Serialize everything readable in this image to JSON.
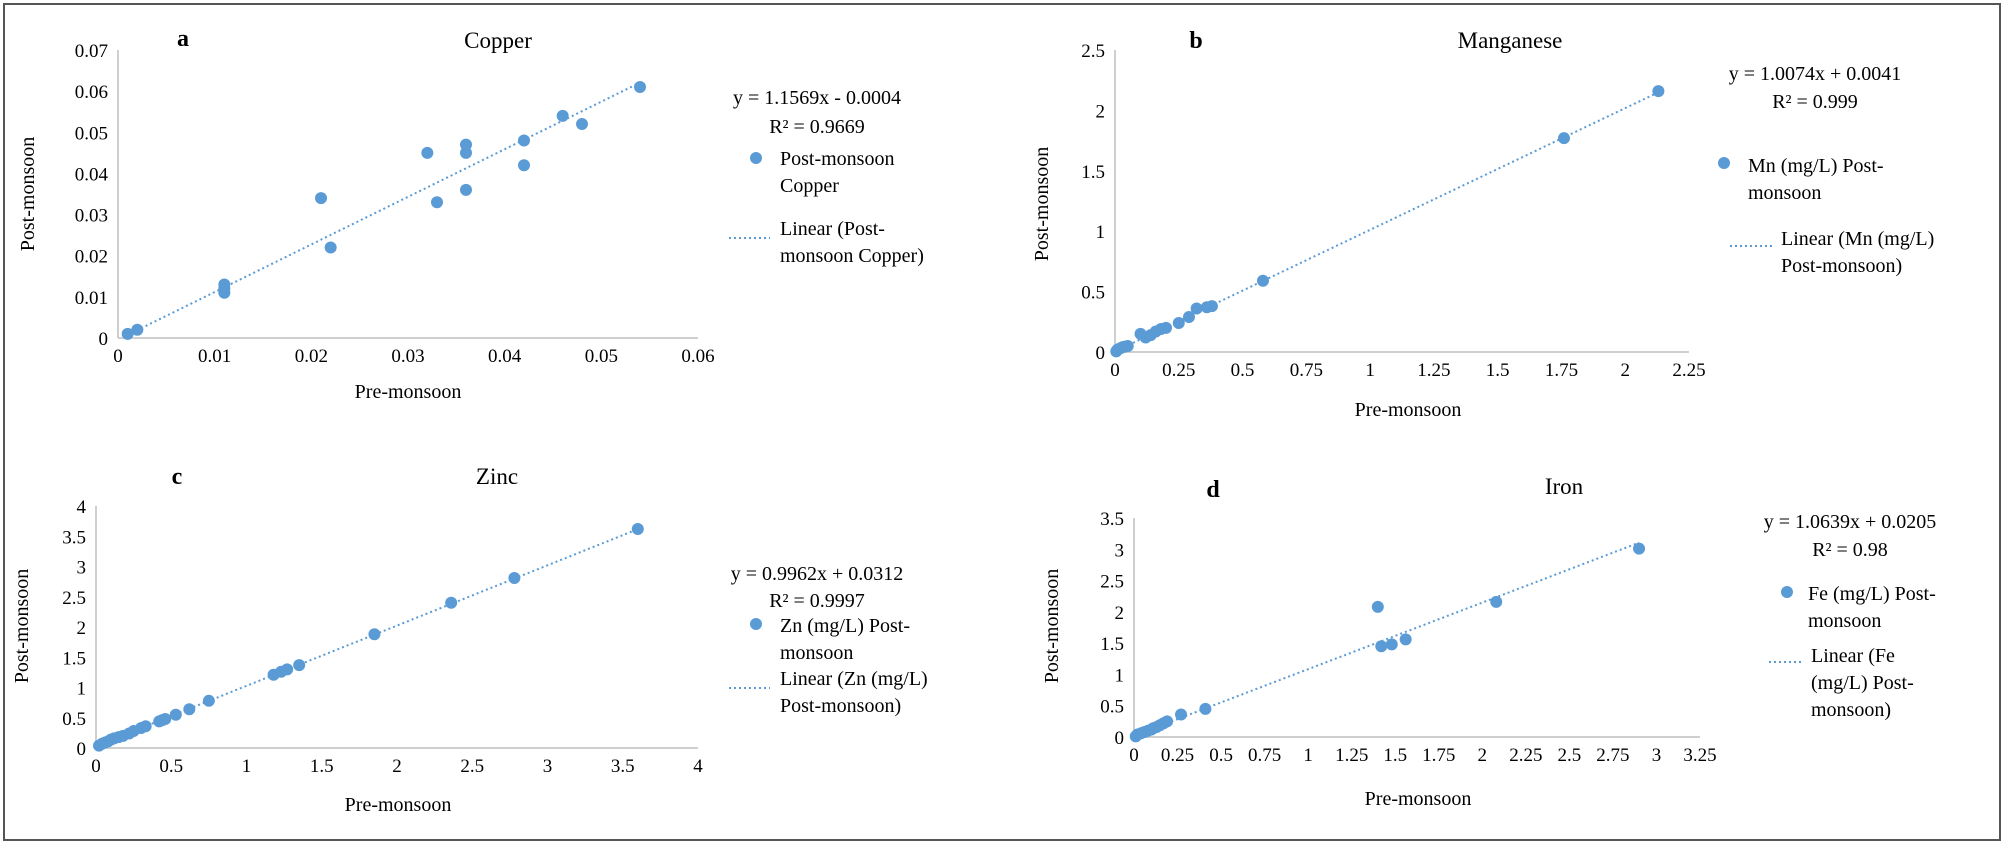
{
  "colors": {
    "marker": "#5b9bd5",
    "trend": "#5b9bd5",
    "axis": "#bfbfbf",
    "frame": "#555555",
    "text": "#000000"
  },
  "chart_data": [
    {
      "panel": "a",
      "type": "scatter",
      "title": "Copper",
      "xlabel": "Pre-monsoon",
      "ylabel": "Post-monsoon",
      "xlim": [
        0,
        0.06
      ],
      "ylim": [
        0,
        0.07
      ],
      "xticks": [
        0,
        0.01,
        0.02,
        0.03,
        0.04,
        0.05,
        0.06
      ],
      "yticks": [
        0,
        0.01,
        0.02,
        0.03,
        0.04,
        0.05,
        0.06,
        0.07
      ],
      "xtick_labels": [
        "0",
        "0.01",
        "0.02",
        "0.03",
        "0.04",
        "0.05",
        "0.06"
      ],
      "ytick_labels": [
        "0",
        "0.01",
        "0.02",
        "0.03",
        "0.04",
        "0.05",
        "0.06",
        "0.07"
      ],
      "series": [
        {
          "name": "Post-monsoon Copper",
          "legend_lines": [
            "Post-monsoon",
            "Copper"
          ],
          "x": [
            0.001,
            0.002,
            0.011,
            0.011,
            0.011,
            0.021,
            0.022,
            0.032,
            0.033,
            0.036,
            0.036,
            0.036,
            0.042,
            0.042,
            0.046,
            0.048,
            0.054
          ],
          "y": [
            0.001,
            0.002,
            0.011,
            0.012,
            0.013,
            0.034,
            0.022,
            0.045,
            0.033,
            0.036,
            0.045,
            0.047,
            0.042,
            0.048,
            0.054,
            0.052,
            0.061
          ]
        }
      ],
      "trendline": {
        "name": "Linear (Post-monsoon Copper)",
        "legend_lines": [
          "Linear (Post-",
          "monsoon Copper)"
        ],
        "slope": 1.1569,
        "intercept": -0.0004,
        "x_range": [
          0.001,
          0.054
        ],
        "equation": "y = 1.1569x - 0.0004",
        "r2": "R² = 0.9669"
      }
    },
    {
      "panel": "b",
      "type": "scatter",
      "title": "Manganese",
      "xlabel": "Pre-monsoon",
      "ylabel": "Post-monsoon",
      "xlim": [
        0,
        2.25
      ],
      "ylim": [
        0,
        2.5
      ],
      "xticks": [
        0,
        0.25,
        0.5,
        0.75,
        1,
        1.25,
        1.5,
        1.75,
        2,
        2.25
      ],
      "yticks": [
        0,
        0.5,
        1,
        1.5,
        2,
        2.5
      ],
      "xtick_labels": [
        "0",
        "0.25",
        "0.5",
        "0.75",
        "1",
        "1.25",
        "1.5",
        "1.75",
        "2",
        "2.25"
      ],
      "ytick_labels": [
        "0",
        "0.5",
        "1",
        "1.5",
        "2",
        "2.5"
      ],
      "series": [
        {
          "name": "Mn (mg/L) Post-monsoon",
          "legend_lines": [
            "Mn  (mg/L) Post-",
            "monsoon"
          ],
          "x": [
            0.005,
            0.01,
            0.02,
            0.03,
            0.04,
            0.05,
            0.1,
            0.12,
            0.14,
            0.16,
            0.18,
            0.2,
            0.25,
            0.29,
            0.32,
            0.36,
            0.38,
            0.58,
            1.76,
            2.13
          ],
          "y": [
            0.005,
            0.02,
            0.03,
            0.04,
            0.045,
            0.05,
            0.15,
            0.12,
            0.14,
            0.17,
            0.19,
            0.2,
            0.24,
            0.29,
            0.36,
            0.37,
            0.38,
            0.59,
            1.77,
            2.16
          ]
        }
      ],
      "trendline": {
        "name": "Linear (Mn (mg/L) Post-monsoon)",
        "legend_lines": [
          "Linear (Mn  (mg/L)",
          "Post-monsoon)"
        ],
        "slope": 1.0074,
        "intercept": 0.0041,
        "x_range": [
          0,
          2.13
        ],
        "equation": "y = 1.0074x + 0.0041",
        "r2": "R² = 0.999"
      }
    },
    {
      "panel": "c",
      "type": "scatter",
      "title": "Zinc",
      "xlabel": "Pre-monsoon",
      "ylabel": "Post-monsoon",
      "xlim": [
        0,
        4
      ],
      "ylim": [
        0,
        4
      ],
      "xticks": [
        0,
        0.5,
        1,
        1.5,
        2,
        2.5,
        3,
        3.5,
        4
      ],
      "yticks": [
        0,
        0.5,
        1,
        1.5,
        2,
        2.5,
        3,
        3.5,
        4
      ],
      "xtick_labels": [
        "0",
        "0.5",
        "1",
        "1.5",
        "2",
        "2.5",
        "3",
        "3.5",
        "4"
      ],
      "ytick_labels": [
        "0",
        "0.5",
        "1",
        "1.5",
        "2",
        "2.5",
        "3",
        "3.5",
        "4"
      ],
      "series": [
        {
          "name": "Zn (mg/L) Post-monsoon",
          "legend_lines": [
            "Zn  (mg/L) Post-",
            "monsoon"
          ],
          "x": [
            0.02,
            0.04,
            0.06,
            0.08,
            0.1,
            0.12,
            0.15,
            0.18,
            0.22,
            0.25,
            0.3,
            0.33,
            0.42,
            0.44,
            0.46,
            0.53,
            0.62,
            0.75,
            1.18,
            1.23,
            1.27,
            1.35,
            1.85,
            2.36,
            2.78,
            3.6
          ],
          "y": [
            0.04,
            0.07,
            0.09,
            0.11,
            0.14,
            0.16,
            0.18,
            0.2,
            0.24,
            0.28,
            0.33,
            0.36,
            0.44,
            0.46,
            0.48,
            0.55,
            0.64,
            0.78,
            1.21,
            1.26,
            1.3,
            1.37,
            1.88,
            2.4,
            2.81,
            3.62
          ]
        }
      ],
      "trendline": {
        "name": "Linear (Zn (mg/L) Post-monsoon)",
        "legend_lines": [
          "Linear (Zn  (mg/L)",
          "Post-monsoon)"
        ],
        "slope": 0.9962,
        "intercept": 0.0312,
        "x_range": [
          0,
          3.6
        ],
        "equation": "y = 0.9962x + 0.0312",
        "r2": "R² = 0.9997"
      }
    },
    {
      "panel": "d",
      "type": "scatter",
      "title": "Iron",
      "xlabel": "Pre-monsoon",
      "ylabel": "Post-monsoon",
      "xlim": [
        0,
        3.25
      ],
      "ylim": [
        0,
        3.5
      ],
      "xticks": [
        0,
        0.25,
        0.5,
        0.75,
        1,
        1.25,
        1.5,
        1.75,
        2,
        2.25,
        2.5,
        2.75,
        3,
        3.25
      ],
      "yticks": [
        0,
        0.5,
        1,
        1.5,
        2,
        2.5,
        3,
        3.5
      ],
      "xtick_labels": [
        "0",
        "0.25",
        "0.5",
        "0.75",
        "1",
        "1.25",
        "1.5",
        "1.75",
        "2",
        "2.25",
        "2.5",
        "2.75",
        "3",
        "3.25"
      ],
      "ytick_labels": [
        "0",
        "0.5",
        "1",
        "1.5",
        "2",
        "2.5",
        "3",
        "3.5"
      ],
      "series": [
        {
          "name": "Fe (mg/L) Post-monsoon",
          "legend_lines": [
            "Fe  (mg/L) Post-",
            "monsoon"
          ],
          "x": [
            0.01,
            0.02,
            0.04,
            0.06,
            0.08,
            0.1,
            0.11,
            0.13,
            0.15,
            0.17,
            0.19,
            0.27,
            0.41,
            1.4,
            1.42,
            1.48,
            1.56,
            2.08,
            2.9
          ],
          "y": [
            0.01,
            0.04,
            0.06,
            0.08,
            0.1,
            0.12,
            0.14,
            0.16,
            0.19,
            0.22,
            0.25,
            0.36,
            0.45,
            2.08,
            1.45,
            1.48,
            1.56,
            2.16,
            3.01
          ]
        }
      ],
      "trendline": {
        "name": "Linear (Fe (mg/L) Post-monsoon)",
        "legend_lines": [
          "Linear (Fe",
          "(mg/L) Post-",
          "monsoon)"
        ],
        "slope": 1.0639,
        "intercept": 0.0205,
        "x_range": [
          0,
          2.9
        ],
        "equation": "y = 1.0639x + 0.0205",
        "r2": "R² = 0.98"
      }
    }
  ]
}
